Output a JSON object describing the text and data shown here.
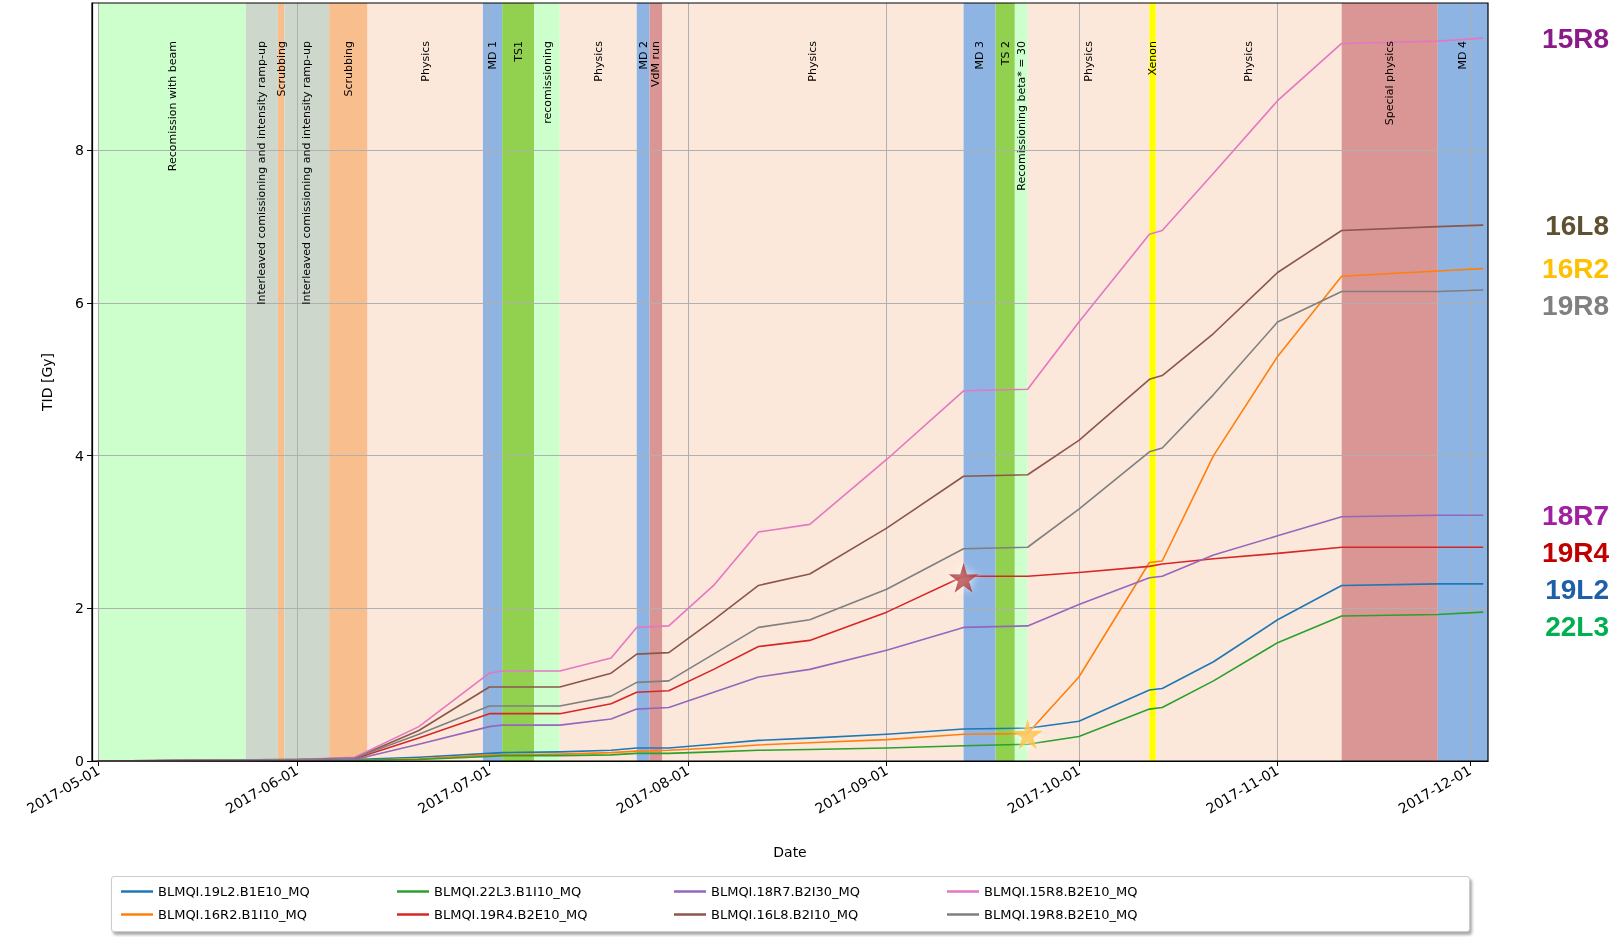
{
  "chart_data": {
    "type": "line",
    "xlabel": "Date",
    "ylabel": "TID [Gy]",
    "x": [
      "2017-05-01",
      "2017-06-01",
      "2017-06-10",
      "2017-06-20",
      "2017-07-01",
      "2017-07-03",
      "2017-07-12",
      "2017-07-20",
      "2017-07-24",
      "2017-07-29",
      "2017-08-05",
      "2017-08-12",
      "2017-08-20",
      "2017-09-01",
      "2017-09-13",
      "2017-09-23",
      "2017-10-01",
      "2017-10-12",
      "2017-10-14",
      "2017-10-22",
      "2017-11-01",
      "2017-11-11",
      "2017-11-26",
      "2017-12-03"
    ],
    "series": [
      {
        "name": "BLMQI.19L2.B1E10_MQ",
        "color": "#1f77b4",
        "values": [
          0,
          0.01,
          0.02,
          0.05,
          0.1,
          0.11,
          0.12,
          0.14,
          0.17,
          0.17,
          0.22,
          0.27,
          0.3,
          0.35,
          0.42,
          0.43,
          0.52,
          0.93,
          0.95,
          1.3,
          1.85,
          2.3,
          2.32,
          2.32
        ]
      },
      {
        "name": "BLMQI.16R2.B1I10_MQ",
        "color": "#ff7f0e",
        "values": [
          null,
          null,
          0.01,
          0.03,
          0.08,
          0.08,
          0.09,
          0.11,
          0.13,
          0.14,
          0.17,
          0.21,
          0.24,
          0.28,
          0.35,
          0.36,
          1.1,
          2.6,
          2.62,
          4.0,
          5.3,
          6.35,
          6.42,
          6.45
        ]
      },
      {
        "name": "BLMQI.22L3.B1I10_MQ",
        "color": "#2ca02c",
        "values": [
          0,
          0.01,
          0.01,
          0.02,
          0.06,
          0.07,
          0.07,
          0.08,
          0.1,
          0.1,
          0.12,
          0.14,
          0.15,
          0.17,
          0.2,
          0.22,
          0.32,
          0.68,
          0.7,
          1.05,
          1.55,
          1.9,
          1.92,
          1.95
        ]
      },
      {
        "name": "BLMQI.19R4.B2E10_MQ",
        "color": "#d62728",
        "values": [
          0,
          0.01,
          0.03,
          0.3,
          0.62,
          0.62,
          0.62,
          0.75,
          0.9,
          0.92,
          1.2,
          1.5,
          1.58,
          1.95,
          2.42,
          2.42,
          2.47,
          2.55,
          2.58,
          2.65,
          2.72,
          2.8,
          2.8,
          2.8
        ]
      },
      {
        "name": "BLMQI.18R7.B2I30_MQ",
        "color": "#9467bd",
        "values": [
          0,
          0.01,
          0.02,
          0.22,
          0.45,
          0.47,
          0.47,
          0.55,
          0.68,
          0.7,
          0.9,
          1.1,
          1.2,
          1.45,
          1.75,
          1.77,
          2.05,
          2.4,
          2.42,
          2.7,
          2.95,
          3.2,
          3.22,
          3.22
        ]
      },
      {
        "name": "BLMQI.16L8.B2I10_MQ",
        "color": "#8c564b",
        "values": [
          0,
          0.02,
          0.04,
          0.4,
          0.97,
          0.97,
          0.97,
          1.15,
          1.4,
          1.42,
          1.85,
          2.3,
          2.45,
          3.05,
          3.73,
          3.75,
          4.2,
          5.0,
          5.05,
          5.6,
          6.4,
          6.95,
          7.0,
          7.02
        ]
      },
      {
        "name": "BLMQI.15R8.B2E10_MQ",
        "color": "#e377c2",
        "values": [
          0,
          0.02,
          0.05,
          0.45,
          1.15,
          1.18,
          1.18,
          1.35,
          1.75,
          1.77,
          2.3,
          3.0,
          3.1,
          3.95,
          4.85,
          4.87,
          5.75,
          6.9,
          6.95,
          7.7,
          8.65,
          9.4,
          9.43,
          9.47
        ]
      },
      {
        "name": "BLMQI.19R8.B2E10_MQ",
        "color": "#7f7f7f",
        "values": [
          0,
          0.02,
          0.04,
          0.35,
          0.72,
          0.72,
          0.72,
          0.85,
          1.03,
          1.05,
          1.4,
          1.75,
          1.85,
          2.25,
          2.78,
          2.8,
          3.3,
          4.05,
          4.1,
          4.8,
          5.75,
          6.15,
          6.15,
          6.17
        ]
      },
      {
        "type": "scatter",
        "x": [
          "2017-09-13"
        ],
        "values": [
          2.4
        ],
        "color": "#b30000",
        "marker": "star"
      },
      {
        "type": "scatter",
        "x": [
          "2017-09-23"
        ],
        "values": [
          0.35
        ],
        "color": "#ffc000",
        "marker": "star"
      }
    ],
    "xlim": [
      "2017-04-30",
      "2017-12-03T20:00"
    ],
    "xticks": [
      "2017-05-01",
      "2017-06-01",
      "2017-07-01",
      "2017-08-01",
      "2017-09-01",
      "2017-10-01",
      "2017-11-01",
      "2017-12-01"
    ],
    "ylim": [
      0,
      9.93
    ],
    "yticks": [
      0,
      2,
      4,
      6,
      8
    ],
    "grid": true,
    "legend": "bottom",
    "marker": "none",
    "bands": [
      {
        "axis": "x",
        "from": "2017-05-01",
        "to": "2017-05-24",
        "label": "Recomission with beam",
        "color": "#ccffcc"
      },
      {
        "axis": "x",
        "from": "2017-05-24",
        "to": "2017-05-29",
        "label": "Interleaved comissioning and intensity ramp-up",
        "color": "#cdd7cc"
      },
      {
        "axis": "x",
        "from": "2017-05-29",
        "to": "2017-05-30",
        "label": "Scrubbing",
        "color": "#f8be8e"
      },
      {
        "axis": "x",
        "from": "2017-05-30",
        "to": "2017-06-06",
        "label": "Interleaved comissioning and intensity ramp-up",
        "color": "#cdd7cc"
      },
      {
        "axis": "x",
        "from": "2017-06-06",
        "to": "2017-06-12",
        "label": "Scrubbing",
        "color": "#f8be8e"
      },
      {
        "axis": "x",
        "from": "2017-06-12",
        "to": "2017-06-30",
        "label": "Physics",
        "color": "#fce8da"
      },
      {
        "axis": "x",
        "from": "2017-06-30",
        "to": "2017-07-03",
        "label": "MD 1",
        "color": "#8eb4e3"
      },
      {
        "axis": "x",
        "from": "2017-07-03",
        "to": "2017-07-08",
        "label": "TS1",
        "color": "#92d050"
      },
      {
        "axis": "x",
        "from": "2017-07-08",
        "to": "2017-07-12",
        "label": "recomissioning",
        "color": "#ccffcc"
      },
      {
        "axis": "x",
        "from": "2017-07-12",
        "to": "2017-07-24",
        "label": "Physics",
        "color": "#fce8da"
      },
      {
        "axis": "x",
        "from": "2017-07-24",
        "to": "2017-07-26",
        "label": "MD 2",
        "color": "#8eb4e3"
      },
      {
        "axis": "x",
        "from": "2017-07-26",
        "to": "2017-07-28",
        "label": "VdM run",
        "color": "#d99694"
      },
      {
        "axis": "x",
        "from": "2017-07-28",
        "to": "2017-09-13",
        "label": "Physics",
        "color": "#fce8da"
      },
      {
        "axis": "x",
        "from": "2017-09-13",
        "to": "2017-09-18",
        "label": "MD 3",
        "color": "#8eb4e3"
      },
      {
        "axis": "x",
        "from": "2017-09-18",
        "to": "2017-09-21",
        "label": "TS 2",
        "color": "#92d050"
      },
      {
        "axis": "x",
        "from": "2017-09-21",
        "to": "2017-09-23",
        "label": "Recomissioning beta* = 30",
        "color": "#ccffcc"
      },
      {
        "axis": "x",
        "from": "2017-09-23",
        "to": "2017-10-12",
        "label": "Physics",
        "color": "#fce8da"
      },
      {
        "axis": "x",
        "from": "2017-10-12",
        "to": "2017-10-13",
        "label": "Xenon",
        "color": "#ffff00"
      },
      {
        "axis": "x",
        "from": "2017-10-13",
        "to": "2017-11-11",
        "label": "Physics",
        "color": "#fce8da"
      },
      {
        "axis": "x",
        "from": "2017-11-11",
        "to": "2017-11-26",
        "label": "Special physics",
        "color": "#d99694"
      },
      {
        "axis": "x",
        "from": "2017-11-26",
        "to": "2017-12-03T20:00",
        "label": "MD 4",
        "color": "#8eb4e3"
      }
    ],
    "annotations": [
      {
        "text": "15R8",
        "x": "2017-12-03",
        "y": 9.47
      },
      {
        "text": "16L8",
        "x": "2017-12-03",
        "y": 7.02
      },
      {
        "text": "16R2",
        "x": "2017-12-03",
        "y": 6.45
      },
      {
        "text": "19R8",
        "x": "2017-12-03",
        "y": 6.17
      },
      {
        "text": "18R7",
        "x": "2017-12-03",
        "y": 3.22
      },
      {
        "text": "19R4",
        "x": "2017-12-03",
        "y": 2.8
      },
      {
        "text": "19L2",
        "x": "2017-12-03",
        "y": 2.32
      },
      {
        "text": "22L3",
        "x": "2017-12-03",
        "y": 1.95
      }
    ]
  }
}
